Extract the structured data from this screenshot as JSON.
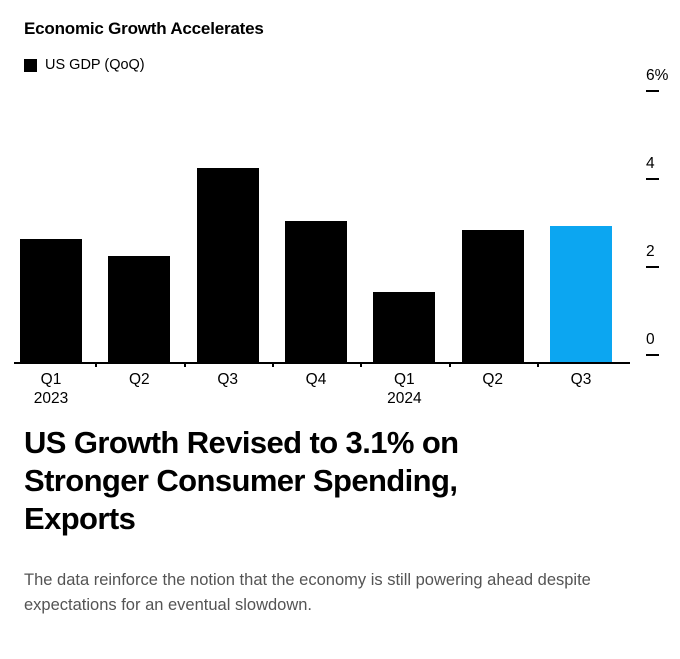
{
  "chart": {
    "title": "Economic Growth Accelerates",
    "legend_label": "US GDP (QoQ)"
  },
  "chart_data": {
    "type": "bar",
    "title": "Economic Growth Accelerates",
    "legend": [
      "US GDP (QoQ)"
    ],
    "legend_position": "top-left",
    "categories": [
      "Q1\n2023",
      "Q2",
      "Q3",
      "Q4",
      "Q1\n2024",
      "Q2",
      "Q3"
    ],
    "values": [
      2.8,
      2.4,
      4.4,
      3.2,
      1.6,
      3.0,
      3.1
    ],
    "unit": "%",
    "ylim": [
      0,
      6
    ],
    "yticks": [
      {
        "label": "6%",
        "value": 6
      },
      {
        "label": "4",
        "value": 4
      },
      {
        "label": "2",
        "value": 2
      },
      {
        "label": "0",
        "value": 0
      }
    ],
    "axis_side": "right",
    "grid": false,
    "bar_color": "#000000",
    "highlight_color": "#0CA6F1",
    "highlight_index": 6
  },
  "article": {
    "headline_lines": [
      "US Growth Revised to 3.1% on",
      "Stronger Consumer Spending,",
      "Exports"
    ],
    "deck": "The data reinforce the notion that the economy is still powering ahead despite expectations for an eventual slowdown."
  }
}
